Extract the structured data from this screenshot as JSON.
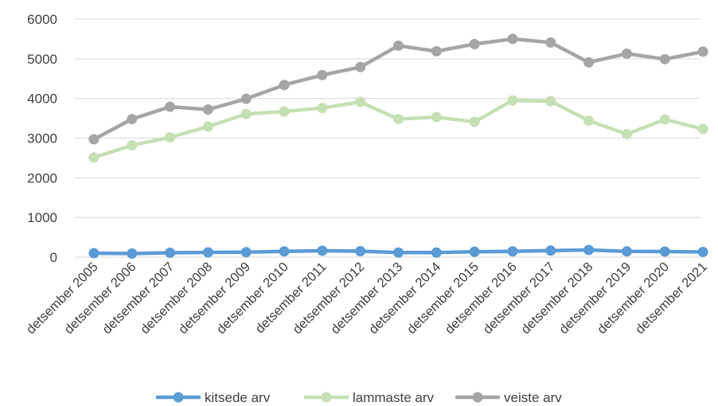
{
  "chart_data": {
    "type": "line",
    "title": "",
    "xlabel": "",
    "ylabel": "",
    "categories": [
      "detsember 2005",
      "detsember 2006",
      "detsember 2007",
      "detsember 2008",
      "detsember 2009",
      "detsember 2010",
      "detsember 2011",
      "detsember 2012",
      "detsember 2013",
      "detsember 2014",
      "detsember 2015",
      "detsember 2016",
      "detsember 2017",
      "detsember 2018",
      "detsember 2019",
      "detsember 2020",
      "detsember 2021"
    ],
    "y_ticks": [
      "0",
      "1000",
      "2000",
      "3000",
      "4000",
      "5000",
      "6000"
    ],
    "ylim": [
      0,
      6000
    ],
    "grid": true,
    "legend_position": "bottom",
    "series": [
      {
        "name": "kitsede arv",
        "color": "#5B9BD5",
        "values": [
          100,
          90,
          110,
          120,
          125,
          145,
          160,
          150,
          115,
          115,
          135,
          145,
          165,
          180,
          145,
          140,
          130
        ]
      },
      {
        "name": "lammaste arv",
        "color": "#C5E0B4",
        "values": [
          2510,
          2820,
          3020,
          3290,
          3610,
          3670,
          3760,
          3910,
          3480,
          3530,
          3410,
          3950,
          3930,
          3440,
          3100,
          3470,
          3230
        ]
      },
      {
        "name": "veiste arv",
        "color": "#A5A5A5",
        "values": [
          2970,
          3480,
          3790,
          3720,
          3990,
          4340,
          4590,
          4790,
          5330,
          5190,
          5370,
          5500,
          5410,
          4910,
          5130,
          4990,
          5180
        ]
      }
    ]
  }
}
